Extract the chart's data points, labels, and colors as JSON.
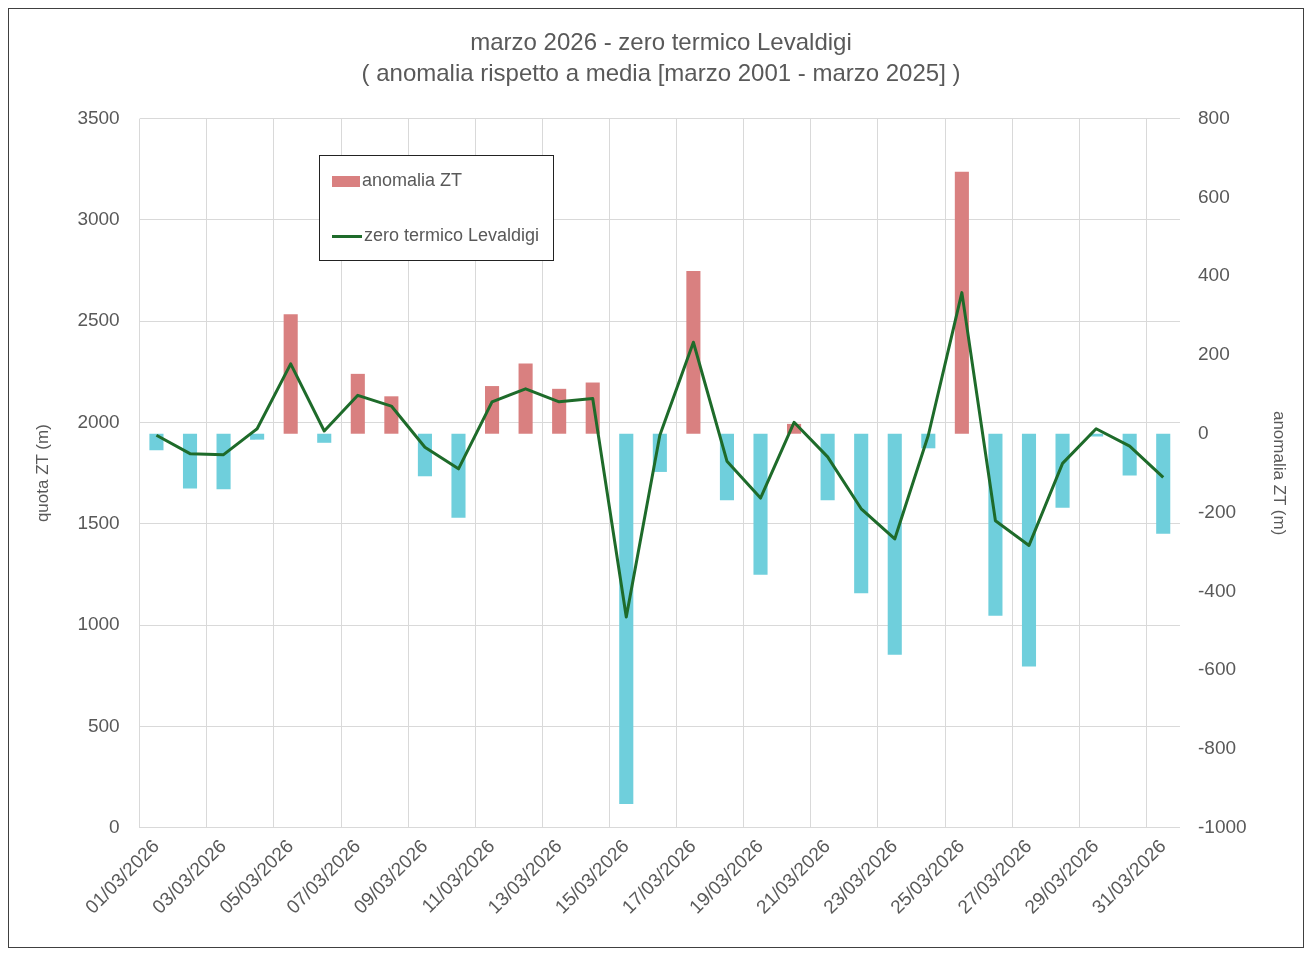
{
  "chart_data": {
    "type": "bar",
    "title": "marzo 2026 - zero termico Levaldigi",
    "subtitle": "( anomalia rispetto a media [marzo 2001 - marzo 2025] )",
    "ylabel": "quota ZT (m)",
    "y2label": "anomalia ZT (m)",
    "categories": [
      "01/03/2026",
      null,
      "03/03/2026",
      null,
      "05/03/2026",
      null,
      "07/03/2026",
      null,
      "09/03/2026",
      null,
      "11/03/2026",
      null,
      "13/03/2026",
      null,
      "15/03/2026",
      null,
      "17/03/2026",
      null,
      "19/03/2026",
      null,
      "21/03/2026",
      null,
      "23/03/2026",
      null,
      "25/03/2026",
      null,
      "27/03/2026",
      null,
      "29/03/2026",
      null,
      "31/03/2026"
    ],
    "series": [
      {
        "name": "anomalia ZT",
        "axis": "y2",
        "color": "#d98080",
        "colors": [
          "#6fcfdc",
          "#6fcfdc",
          "#6fcfdc",
          "#6fcfdc",
          "#d98080",
          "#6fcfdc",
          "#d98080",
          "#d98080",
          "#6fcfdc",
          "#6fcfdc",
          "#d98080",
          "#d98080",
          "#d98080",
          "#d98080",
          "#6fcfdc",
          "#6fcfdc",
          "#d98080",
          "#6fcfdc",
          "#6fcfdc",
          "#d98080",
          "#6fcfdc",
          "#6fcfdc",
          "#6fcfdc",
          "#6fcfdc",
          "#d98080",
          "#6fcfdc",
          "#6fcfdc",
          "#6fcfdc",
          "#6fcfdc",
          "#6fcfdc",
          "#6fcfdc"
        ],
        "values": [
          -42,
          -139,
          -141,
          -15,
          303,
          -23,
          152,
          95,
          -108,
          -213,
          121,
          178,
          114,
          130,
          -940,
          -97,
          413,
          -169,
          -358,
          25,
          -169,
          -405,
          -561,
          -37,
          665,
          -462,
          -591,
          -188,
          -7,
          -106,
          -254
        ]
      },
      {
        "name": "zero termico Levaldigi",
        "type": "line",
        "color": "#1e6b2a",
        "values": [
          1937,
          1846,
          1841,
          1969,
          2289,
          1958,
          2134,
          2081,
          1878,
          1771,
          2102,
          2166,
          2102,
          2118,
          1040,
          1937,
          2396,
          1809,
          1627,
          2001,
          1830,
          1574,
          1425,
          1937,
          2641,
          1515,
          1393,
          1798,
          1969,
          1883,
          1729
        ]
      }
    ],
    "ylim": [
      0,
      3500
    ],
    "yticks": [
      0,
      500,
      1000,
      1500,
      2000,
      2500,
      3000,
      3500
    ],
    "y2lim": [
      -1000,
      800
    ],
    "y2ticks": [
      -1000,
      -800,
      -600,
      -400,
      -200,
      0,
      200,
      400,
      600,
      800
    ],
    "grid": true,
    "legend": "top left",
    "marker": "none"
  }
}
